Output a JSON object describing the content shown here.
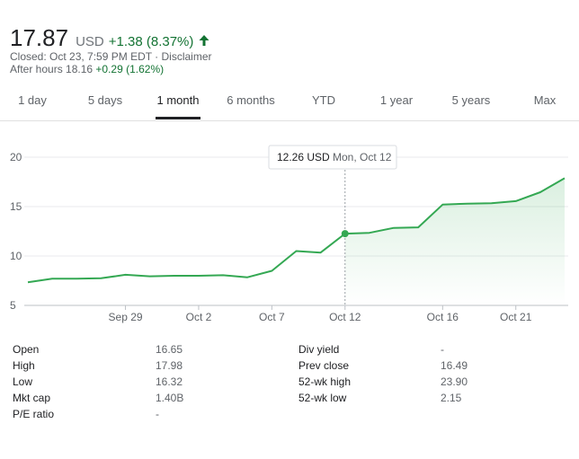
{
  "quote": {
    "price": "17.87",
    "currency": "USD",
    "change": "+1.38 (8.37%)",
    "closed_label": "Closed: Oct 23, 7:59 PM EDT · Disclaimer",
    "after_hours_label": "After hours 18.16",
    "after_hours_change": "+0.29 (1.62%)",
    "up_color": "#137333",
    "arrow_icon": "arrow-up-icon"
  },
  "tabs": [
    {
      "label": "1 day",
      "active": false
    },
    {
      "label": "5 days",
      "active": false
    },
    {
      "label": "1 month",
      "active": true
    },
    {
      "label": "6 months",
      "active": false
    },
    {
      "label": "YTD",
      "active": false
    },
    {
      "label": "1 year",
      "active": false
    },
    {
      "label": "5 years",
      "active": false
    },
    {
      "label": "Max",
      "active": false
    }
  ],
  "tooltip": {
    "price": "12.26 USD",
    "date": "Mon, Oct 12"
  },
  "chart_data": {
    "type": "area",
    "x": [
      "Sep 23",
      "Sep 24",
      "Sep 25",
      "Sep 28",
      "Sep 29",
      "Sep 30",
      "Oct 1",
      "Oct 2",
      "Oct 5",
      "Oct 6",
      "Oct 7",
      "Oct 8",
      "Oct 9",
      "Oct 12",
      "Oct 13",
      "Oct 14",
      "Oct 15",
      "Oct 16",
      "Oct 19",
      "Oct 20",
      "Oct 21",
      "Oct 22",
      "Oct 23"
    ],
    "values": [
      7.35,
      7.7,
      7.7,
      7.75,
      8.1,
      7.95,
      8.0,
      8.0,
      8.05,
      7.85,
      8.5,
      10.5,
      10.35,
      12.26,
      12.35,
      12.85,
      12.9,
      15.2,
      15.3,
      15.35,
      15.55,
      16.45,
      17.87
    ],
    "x_tick_labels": [
      "Sep 29",
      "Oct 2",
      "Oct 7",
      "Oct 12",
      "Oct 16",
      "Oct 21"
    ],
    "y_ticks": [
      5,
      10,
      15,
      20
    ],
    "ylim": [
      5,
      20
    ],
    "line_color": "#34a853",
    "highlight": {
      "x": "Oct 12",
      "value": 12.26
    },
    "grid": true
  },
  "stats": [
    {
      "label": "Open",
      "value": "16.65"
    },
    {
      "label": "High",
      "value": "17.98"
    },
    {
      "label": "Low",
      "value": "16.32"
    },
    {
      "label": "Mkt cap",
      "value": "1.40B"
    },
    {
      "label": "P/E ratio",
      "value": "-"
    },
    {
      "label": "Div yield",
      "value": "-"
    },
    {
      "label": "Prev close",
      "value": "16.49"
    },
    {
      "label": "52-wk high",
      "value": "23.90"
    },
    {
      "label": "52-wk low",
      "value": "2.15"
    }
  ]
}
